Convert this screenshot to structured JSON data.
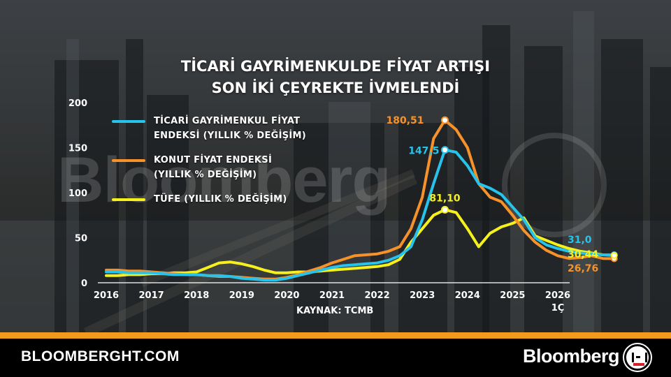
{
  "title": {
    "line1": "TİCARİ GAYRİMENKULDE FİYAT ARTIŞI",
    "line2": "SON İKİ ÇEYREKTE İVMELENDİ"
  },
  "watermark": "Bloomberg",
  "source": "KAYNAK: TCMB",
  "footer": {
    "site": "BLOOMBERGHT.COM",
    "brand": "Bloomberg"
  },
  "legend": [
    {
      "line1": "TİCARİ GAYRİMENKUL FİYAT",
      "line2": "ENDEKSİ (YILLIK % DEĞİŞİM)",
      "color": "#27c3ea"
    },
    {
      "line1": "KONUT FİYAT ENDEKSİ",
      "line2": "(YILLIK % DEĞİŞİM)",
      "color": "#f7922a"
    },
    {
      "line1": "TÜFE (YILLIK % DEĞİŞİM)",
      "line2": "",
      "color": "#f6f01c"
    }
  ],
  "chart_data": {
    "type": "line",
    "x_tick_labels": [
      "2016",
      "2017",
      "2018",
      "2019",
      "2020",
      "2021",
      "2022",
      "2023",
      "2024",
      "2025",
      "2026"
    ],
    "x_last_sublabel": "1Ç",
    "ylim": [
      0,
      200
    ],
    "y_ticks": [
      0,
      50,
      100,
      150,
      200
    ],
    "quarters_per_year": 4,
    "series": [
      {
        "name": "TİCARİ GAYRİMENKUL FİYAT ENDEKSİ (YILLIK % DEĞİŞİM)",
        "color": "#27c3ea",
        "values": [
          12,
          12,
          11,
          11,
          11,
          10,
          9,
          9,
          9,
          8,
          8,
          7,
          5,
          4,
          3,
          3,
          5,
          8,
          11,
          14,
          17,
          19,
          20,
          21,
          22,
          25,
          30,
          40,
          70,
          110,
          147.5,
          145,
          130,
          110,
          105,
          98,
          84,
          70,
          50,
          42,
          38,
          35,
          33,
          32,
          31,
          31.0
        ]
      },
      {
        "name": "KONUT FİYAT ENDEKSİ (YILLIK % DEĞİŞİM)",
        "color": "#f7922a",
        "values": [
          14,
          14,
          13,
          13,
          12,
          11,
          10,
          9,
          9,
          8,
          7,
          7,
          6,
          5,
          4,
          4,
          6,
          9,
          13,
          17,
          22,
          26,
          30,
          31,
          32,
          35,
          40,
          60,
          95,
          160,
          180.51,
          170,
          150,
          110,
          95,
          90,
          75,
          58,
          45,
          36,
          30,
          27,
          28,
          30,
          27,
          26.76
        ]
      },
      {
        "name": "TÜFE (YILLIK % DEĞİŞİM)",
        "color": "#f6f01c",
        "values": [
          8,
          8,
          9,
          9,
          10,
          10,
          11,
          11,
          12,
          17,
          22,
          23,
          21,
          18,
          14,
          11,
          11,
          12,
          12,
          13,
          14,
          15,
          16,
          17,
          18,
          20,
          26,
          45,
          60,
          75,
          81.1,
          78,
          60,
          40,
          55,
          62,
          66,
          72,
          52,
          47,
          42,
          38,
          35,
          33,
          31,
          30.44
        ]
      }
    ],
    "highlights": [
      {
        "series": 0,
        "index": 30,
        "label": "147,5"
      },
      {
        "series": 1,
        "index": 30,
        "label": "180,51"
      },
      {
        "series": 2,
        "index": 30,
        "label": "81,10"
      }
    ],
    "end_labels": [
      "31,0",
      "26,76",
      "30,44"
    ]
  }
}
